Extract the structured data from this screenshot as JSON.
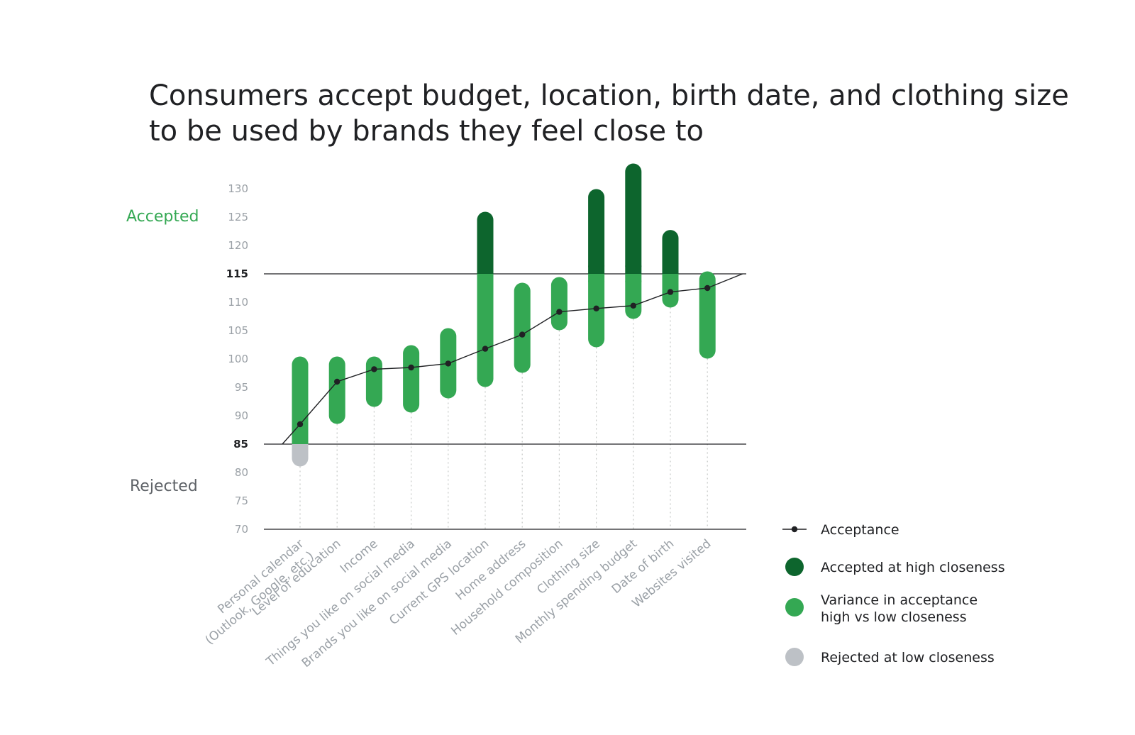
{
  "chart_data": {
    "type": "bar",
    "subtype": "range-with-line",
    "title_lines": [
      "Consumers accept budget, location, birth date, and clothing size",
      "to be used by brands they feel close to"
    ],
    "side_labels": {
      "accepted": "Accepted",
      "rejected": "Rejected"
    },
    "ylim": [
      70,
      130
    ],
    "yticks": [
      130,
      125,
      120,
      115,
      110,
      105,
      100,
      95,
      90,
      85,
      80,
      75,
      70
    ],
    "thresholds": [
      115,
      85
    ],
    "categories": [
      [
        "Personal calendar",
        "(Outlook, Google, etc.)"
      ],
      [
        "Level of education"
      ],
      [
        "Income"
      ],
      [
        "Things you like on social media"
      ],
      [
        "Brands you like on social media"
      ],
      [
        "Current GPS location"
      ],
      [
        "Home address"
      ],
      [
        "Household composition"
      ],
      [
        "Clothing size"
      ],
      [
        "Monthly spending budget"
      ],
      [
        "Date of birth"
      ],
      [
        "Websites visited"
      ]
    ],
    "series": [
      {
        "name": "Acceptance",
        "values": [
          88.5,
          96,
          98.2,
          98.5,
          99.2,
          101.8,
          104.3,
          108.3,
          108.9,
          109.4,
          111.8,
          112.5
        ]
      },
      {
        "name": "Variance in acceptance high vs low closeness",
        "ranges": [
          [
            85,
            99
          ],
          [
            90,
            99
          ],
          [
            93,
            99
          ],
          [
            92,
            101
          ],
          [
            94.5,
            104
          ],
          [
            96.5,
            115
          ],
          [
            99,
            112
          ],
          [
            106.5,
            113
          ],
          [
            103.5,
            115
          ],
          [
            108.5,
            115
          ],
          [
            110.5,
            115
          ],
          [
            101.5,
            114
          ]
        ]
      },
      {
        "name": "Accepted at high closeness",
        "ranges": [
          null,
          null,
          null,
          null,
          null,
          [
            115,
            124.5
          ],
          null,
          null,
          [
            115,
            128.5
          ],
          [
            115,
            133
          ],
          [
            115,
            121.3
          ],
          null
        ]
      },
      {
        "name": "Rejected at low closeness",
        "ranges": [
          [
            82.5,
            85
          ],
          null,
          null,
          null,
          null,
          null,
          null,
          null,
          null,
          null,
          null,
          null
        ]
      }
    ],
    "line_extension": {
      "start": 85,
      "end": 115
    },
    "colors": {
      "variance": "#34a853",
      "high": "#0d652d",
      "rejected": "#bdc1c6",
      "line": "#202124",
      "accepted_label": "#34a853",
      "rejected_label": "#5f6368"
    },
    "legend": [
      {
        "label": "Acceptance",
        "marker": "line-dot"
      },
      {
        "label": "Accepted at high closeness",
        "marker": "dark-green-dot"
      },
      {
        "label": "Variance in acceptance",
        "label2": "high vs low closeness",
        "marker": "green-dot"
      },
      {
        "label": "Rejected at low closeness",
        "marker": "gray-dot"
      }
    ]
  }
}
